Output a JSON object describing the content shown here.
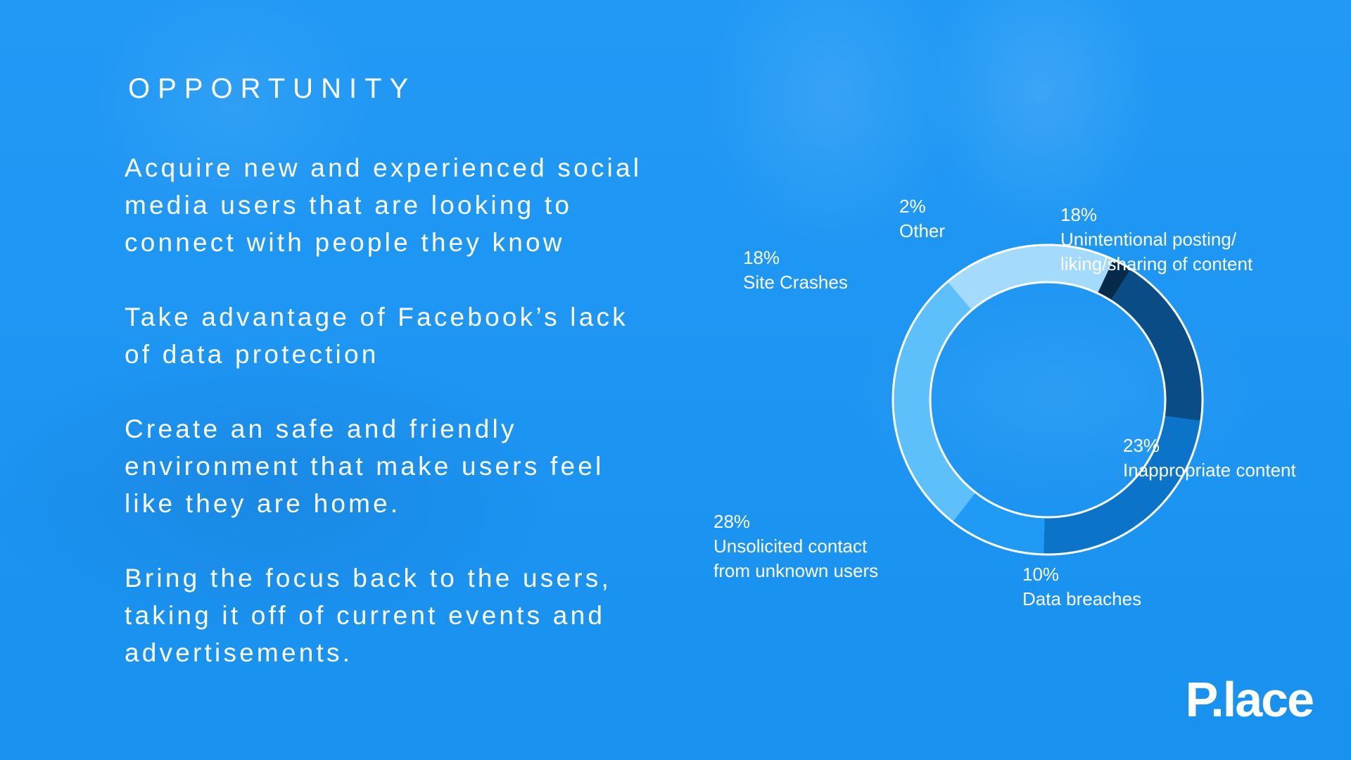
{
  "slide": {
    "title": "OPPORTUNITY",
    "points": [
      "Acquire new and experienced social\nmedia users that are looking to\nconnect with people they know",
      "Take advantage of Facebook’s lack\nof data protection",
      "Create an safe and friendly\nenvironment that make users feel\nlike they are home.",
      "Bring the focus back to the users,\ntaking it off of current events and\nadvertisements."
    ],
    "logo": "P.lace"
  },
  "chart_data": {
    "type": "pie",
    "variant": "donut",
    "slices": [
      {
        "label": "Unintentional posting/\nliking/sharing of content",
        "pct_text": "18%",
        "value": 18,
        "color": "#0a4c85"
      },
      {
        "label": "Inappropriate content",
        "pct_text": "23%",
        "value": 23,
        "color": "#0b74c9"
      },
      {
        "label": "Data breaches",
        "pct_text": "10%",
        "value": 10,
        "color": "#1f9bf5"
      },
      {
        "label": "Unsolicited contact\nfrom unknown users",
        "pct_text": "28%",
        "value": 28,
        "color": "#5ec0fa"
      },
      {
        "label": "Site Crashes",
        "pct_text": "18%",
        "value": 18,
        "color": "#a4dafc"
      },
      {
        "label": "Other",
        "pct_text": "2%",
        "value": 2,
        "color": "#062a4a"
      }
    ]
  }
}
